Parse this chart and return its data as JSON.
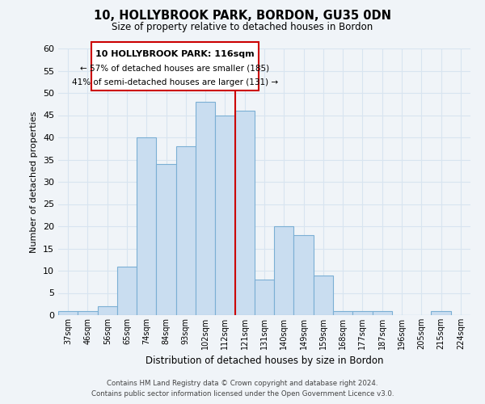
{
  "title": "10, HOLLYBROOK PARK, BORDON, GU35 0DN",
  "subtitle": "Size of property relative to detached houses in Bordon",
  "xlabel": "Distribution of detached houses by size in Bordon",
  "ylabel": "Number of detached properties",
  "bar_labels": [
    "37sqm",
    "46sqm",
    "56sqm",
    "65sqm",
    "74sqm",
    "84sqm",
    "93sqm",
    "102sqm",
    "112sqm",
    "121sqm",
    "131sqm",
    "140sqm",
    "149sqm",
    "159sqm",
    "168sqm",
    "177sqm",
    "187sqm",
    "196sqm",
    "205sqm",
    "215sqm",
    "224sqm"
  ],
  "bar_values": [
    1,
    1,
    2,
    11,
    40,
    34,
    38,
    48,
    45,
    46,
    8,
    20,
    18,
    9,
    1,
    1,
    1,
    0,
    0,
    1,
    0
  ],
  "bar_color": "#c9ddf0",
  "bar_edge_color": "#7bafd4",
  "vline_x": 8.5,
  "vline_color": "#cc0000",
  "ylim": [
    0,
    60
  ],
  "yticks": [
    0,
    5,
    10,
    15,
    20,
    25,
    30,
    35,
    40,
    45,
    50,
    55,
    60
  ],
  "annotation_title": "10 HOLLYBROOK PARK: 116sqm",
  "annotation_line1": "← 57% of detached houses are smaller (185)",
  "annotation_line2": "41% of semi-detached houses are larger (131) →",
  "annotation_box_edge": "#cc0000",
  "footer_line1": "Contains HM Land Registry data © Crown copyright and database right 2024.",
  "footer_line2": "Contains public sector information licensed under the Open Government Licence v3.0.",
  "grid_color": "#d8e4f0",
  "background_color": "#f0f4f8"
}
